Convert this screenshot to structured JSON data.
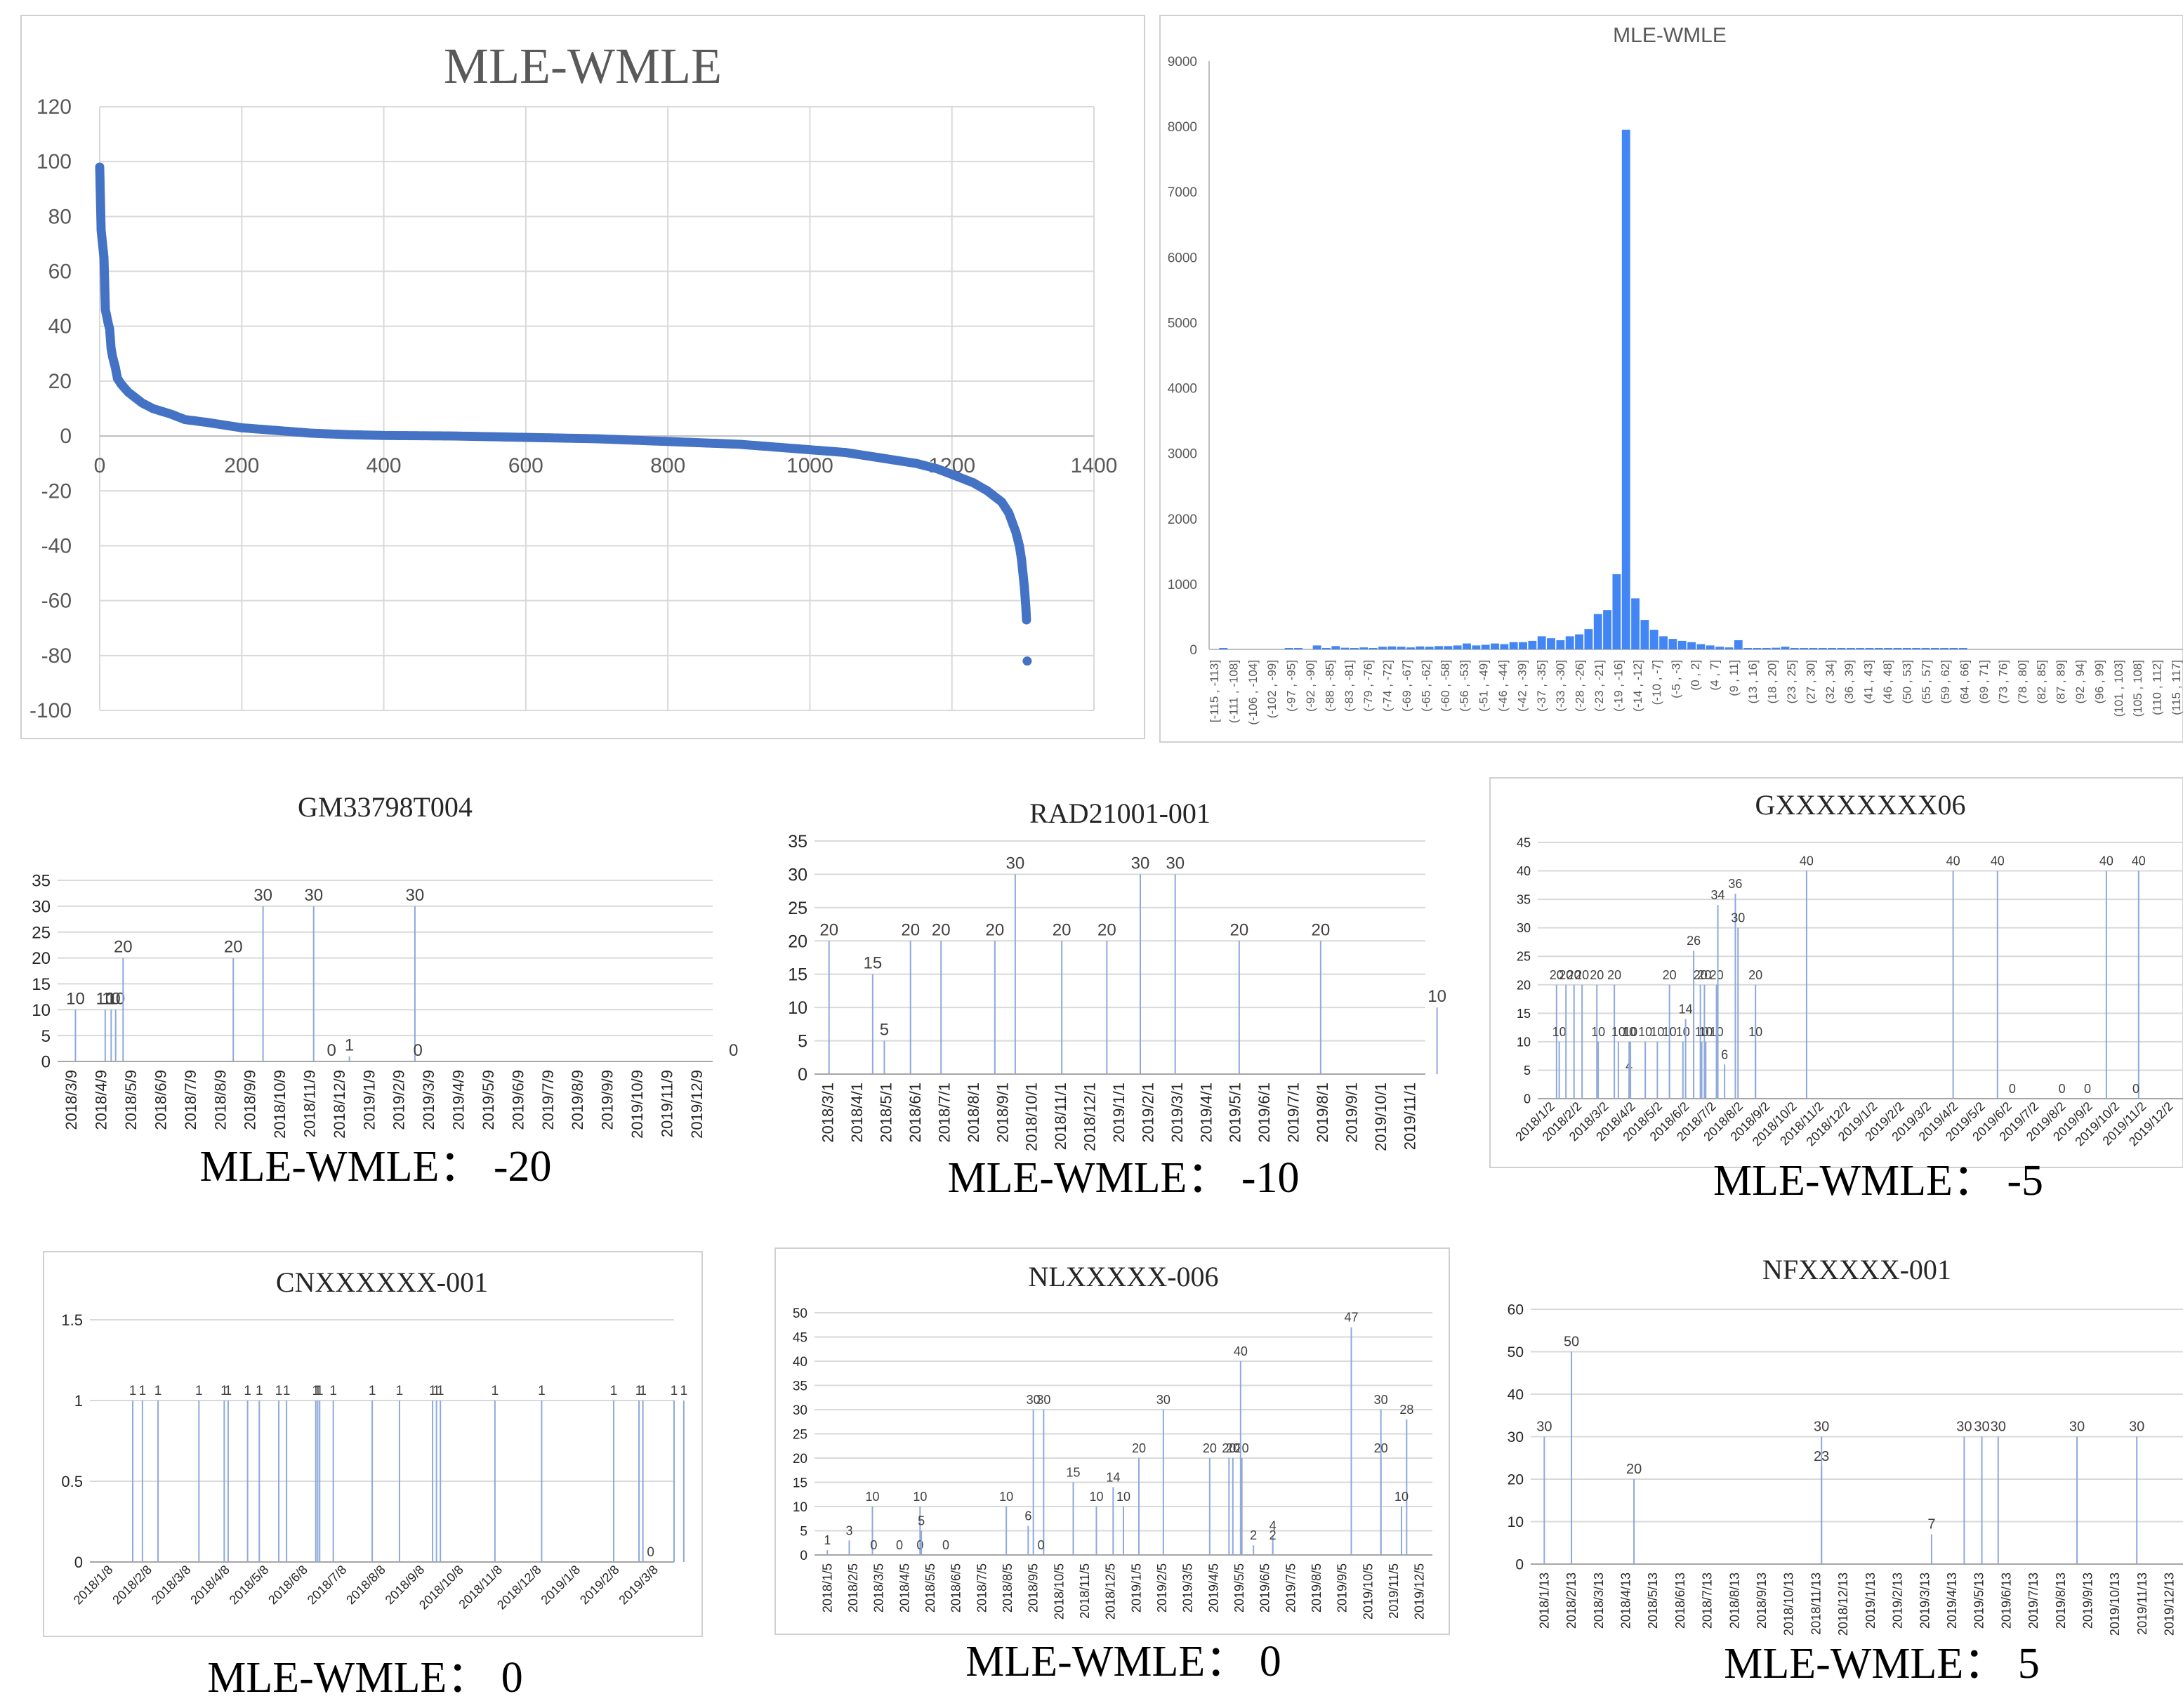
{
  "chart_data": [
    {
      "id": "scatter",
      "type": "scatter",
      "title": "MLE-WMLE",
      "xlim": [
        0,
        1400
      ],
      "ylim": [
        -100,
        120
      ],
      "xticks": [
        0,
        200,
        400,
        600,
        800,
        1000,
        1200,
        1400
      ],
      "yticks": [
        -100,
        -80,
        -60,
        -40,
        -20,
        0,
        20,
        40,
        60,
        80,
        100,
        120
      ],
      "grid": true,
      "color": "#4472C4",
      "curve": [
        [
          0,
          98
        ],
        [
          2,
          75
        ],
        [
          4,
          70
        ],
        [
          6,
          65
        ],
        [
          8,
          46
        ],
        [
          12,
          41
        ],
        [
          14,
          39
        ],
        [
          16,
          32
        ],
        [
          18,
          29
        ],
        [
          22,
          25
        ],
        [
          25,
          21
        ],
        [
          30,
          19
        ],
        [
          40,
          16
        ],
        [
          50,
          14
        ],
        [
          60,
          12
        ],
        [
          75,
          10
        ],
        [
          100,
          8
        ],
        [
          120,
          6
        ],
        [
          150,
          5
        ],
        [
          200,
          3
        ],
        [
          250,
          2
        ],
        [
          300,
          1
        ],
        [
          350,
          0.5
        ],
        [
          400,
          0.2
        ],
        [
          500,
          0
        ],
        [
          600,
          -0.5
        ],
        [
          700,
          -1
        ],
        [
          800,
          -2
        ],
        [
          900,
          -3
        ],
        [
          1000,
          -5
        ],
        [
          1050,
          -6
        ],
        [
          1100,
          -8
        ],
        [
          1150,
          -10
        ],
        [
          1180,
          -12
        ],
        [
          1200,
          -14
        ],
        [
          1230,
          -17
        ],
        [
          1250,
          -20
        ],
        [
          1270,
          -24
        ],
        [
          1280,
          -28
        ],
        [
          1290,
          -35
        ],
        [
          1295,
          -40
        ],
        [
          1298,
          -45
        ],
        [
          1300,
          -50
        ],
        [
          1302,
          -55
        ],
        [
          1304,
          -62
        ],
        [
          1305,
          -67
        ]
      ],
      "outlier": [
        1306,
        -82
      ]
    },
    {
      "id": "hist",
      "type": "bar",
      "title": "MLE-WMLE",
      "ylim": [
        0,
        9000
      ],
      "yticks": [
        0,
        1000,
        2000,
        3000,
        4000,
        5000,
        6000,
        7000,
        8000,
        9000
      ],
      "tick_labels": [
        "[-115 , -113]",
        "(-111 , -108]",
        "(-106 , -104]",
        "(-102 , -99]",
        "(-97 , -95]",
        "(-92 , -90]",
        "(-88 , -85]",
        "(-83 , -81]",
        "(-79 , -76]",
        "(-74 , -72]",
        "(-69 , -67]",
        "(-65 , -62]",
        "(-60 , -58]",
        "(-56 , -53]",
        "(-51 , -49]",
        "(-46 , -44]",
        "(-42 , -39]",
        "(-37 , -35]",
        "(-33 , -30]",
        "(-28 , -26]",
        "(-23 , -21]",
        "(-19 , -16]",
        "(-14 , -12]",
        "(-10 , -7]",
        "(-5 , -3]",
        "(0 , 2]",
        "(4 , 7]",
        "(9 , 11]",
        "(13 , 16]",
        "(18 , 20]",
        "(23 , 25]",
        "(27 , 30]",
        "(32 , 34]",
        "(36 , 39]",
        "(41 , 43]",
        "(46 , 48]",
        "(50 , 53]",
        "(55 , 57]",
        "(59 , 62]",
        "(64 , 66]",
        "(69 , 71]",
        "(73 , 76]",
        "(78 , 80]",
        "(82 , 85]",
        "(87 , 89]",
        "(92 , 94]",
        "(96 , 99]",
        "(101 , 103]",
        "(105 , 108]",
        "(110 , 112]",
        "(115 , 117]"
      ],
      "values": [
        0,
        2,
        0,
        0,
        0,
        0,
        0,
        0,
        5,
        2,
        0,
        60,
        5,
        50,
        25,
        5,
        30,
        5,
        40,
        45,
        40,
        30,
        45,
        40,
        50,
        50,
        60,
        90,
        60,
        70,
        90,
        80,
        110,
        110,
        130,
        200,
        170,
        140,
        200,
        230,
        310,
        540,
        600,
        1150,
        7950,
        780,
        450,
        300,
        200,
        160,
        130,
        110,
        80,
        60,
        40,
        30,
        140,
        20,
        15,
        20,
        25,
        40,
        10,
        8,
        5,
        5,
        5,
        3,
        3,
        2,
        2,
        2,
        1,
        1,
        1,
        1,
        1,
        1,
        1,
        1,
        1,
        0,
        0,
        0,
        0,
        0,
        0,
        0,
        0,
        0,
        0,
        0,
        0,
        0,
        0,
        0,
        0,
        0,
        0,
        0,
        0,
        0,
        0,
        0
      ],
      "color": "#4285F4"
    },
    {
      "id": "gm",
      "type": "bar",
      "title": "GM33798T004",
      "caption": "MLE-WMLE： -20",
      "ylim": [
        0,
        35
      ],
      "yticks": [
        0,
        5,
        10,
        15,
        20,
        25,
        30,
        35
      ],
      "categories": [
        "2018/3/9",
        "2018/4/9",
        "2018/5/9",
        "2018/6/9",
        "2018/7/9",
        "2018/8/9",
        "2018/9/9",
        "2018/10/9",
        "2018/11/9",
        "2018/12/9",
        "2019/1/9",
        "2019/2/9",
        "2019/3/9",
        "2019/4/9",
        "2019/5/9",
        "2019/6/9",
        "2019/7/9",
        "2019/8/9",
        "2019/9/9",
        "2019/10/9",
        "2019/11/9",
        "2019/12/9"
      ],
      "points": [
        [
          0.1,
          10,
          "10"
        ],
        [
          1.1,
          10,
          "10"
        ],
        [
          1.3,
          10,
          "10"
        ],
        [
          1.45,
          10,
          "10"
        ],
        [
          1.7,
          20,
          "20"
        ],
        [
          5.4,
          20,
          "20"
        ],
        [
          6.4,
          30,
          "30"
        ],
        [
          8.1,
          30,
          "30"
        ],
        [
          8.7,
          0,
          "0"
        ],
        [
          9.3,
          1,
          "1"
        ],
        [
          11.5,
          30,
          "30"
        ],
        [
          11.6,
          0,
          "0"
        ],
        [
          22.2,
          0,
          "0"
        ]
      ]
    },
    {
      "id": "rad",
      "type": "bar",
      "title": "RAD21001-001",
      "caption": "MLE-WMLE： -10",
      "ylim": [
        0,
        35
      ],
      "yticks": [
        0,
        5,
        10,
        15,
        20,
        25,
        30,
        35
      ],
      "categories": [
        "2018/3/1",
        "2018/4/1",
        "2018/5/1",
        "2018/6/1",
        "2018/7/1",
        "2018/8/1",
        "2018/9/1",
        "2018/10/1",
        "2018/11/1",
        "2018/12/1",
        "2019/1/1",
        "2019/2/1",
        "2019/3/1",
        "2019/4/1",
        "2019/5/1",
        "2019/6/1",
        "2019/7/1",
        "2019/8/1",
        "2019/9/1",
        "2019/10/1",
        "2019/11/1"
      ],
      "points": [
        [
          0,
          20,
          "20"
        ],
        [
          1.5,
          15,
          "15"
        ],
        [
          1.9,
          5,
          "5"
        ],
        [
          2.8,
          20,
          "20"
        ],
        [
          3.85,
          20,
          "20"
        ],
        [
          5.7,
          20,
          "20"
        ],
        [
          6.4,
          30,
          "30"
        ],
        [
          8.0,
          20,
          "20"
        ],
        [
          9.55,
          20,
          "20"
        ],
        [
          10.7,
          30,
          "30"
        ],
        [
          11.9,
          30,
          "30"
        ],
        [
          14.1,
          20,
          "20"
        ],
        [
          16.9,
          20,
          "20"
        ],
        [
          20.9,
          10,
          "10"
        ]
      ]
    },
    {
      "id": "gx",
      "type": "bar",
      "title": "GXXXXXXXX06",
      "caption": "MLE-WMLE： -5",
      "ylim": [
        0,
        45
      ],
      "yticks": [
        0,
        5,
        10,
        15,
        20,
        25,
        30,
        35,
        40,
        45
      ],
      "categories": [
        "2018/1/2",
        "2018/2/2",
        "2018/3/2",
        "2018/4/2",
        "2018/5/2",
        "2018/6/2",
        "2018/7/2",
        "2018/8/2",
        "2018/9/2",
        "2018/10/2",
        "2018/11/2",
        "2018/12/2",
        "2019/1/2",
        "2019/2/2",
        "2019/3/2",
        "2019/4/2",
        "2019/5/2",
        "2019/6/2",
        "2019/7/2",
        "2019/8/2",
        "2019/9/2",
        "2019/10/2",
        "2019/11/2",
        "2019/12/2"
      ],
      "points": [
        [
          0.2,
          20,
          "20"
        ],
        [
          0.3,
          10,
          "10"
        ],
        [
          0.55,
          20,
          "20"
        ],
        [
          0.85,
          20,
          "20"
        ],
        [
          1.15,
          20,
          "20"
        ],
        [
          1.7,
          20,
          "20"
        ],
        [
          1.75,
          10,
          "10"
        ],
        [
          2.35,
          20,
          "20"
        ],
        [
          2.5,
          10,
          "10"
        ],
        [
          2.9,
          4,
          "4"
        ],
        [
          2.9,
          10,
          "10"
        ],
        [
          2.95,
          10,
          "10"
        ],
        [
          3.5,
          10,
          "10"
        ],
        [
          3.95,
          10,
          "10"
        ],
        [
          4.4,
          20,
          "20"
        ],
        [
          4.4,
          10,
          "10"
        ],
        [
          4.9,
          10,
          "10"
        ],
        [
          5.0,
          14,
          "14"
        ],
        [
          5.3,
          26,
          "26"
        ],
        [
          5.55,
          20,
          "20"
        ],
        [
          5.6,
          10,
          "10"
        ],
        [
          5.7,
          20,
          "20"
        ],
        [
          5.75,
          10,
          "10"
        ],
        [
          6.15,
          20,
          "20"
        ],
        [
          6.15,
          10,
          "10"
        ],
        [
          6.2,
          34,
          "34"
        ],
        [
          6.45,
          6,
          "6"
        ],
        [
          6.85,
          36,
          "36"
        ],
        [
          6.95,
          30,
          "30"
        ],
        [
          7.6,
          20,
          "20"
        ],
        [
          7.6,
          10,
          "10"
        ],
        [
          9.5,
          40,
          "40"
        ],
        [
          14.95,
          40,
          "40"
        ],
        [
          16.6,
          40,
          "40"
        ],
        [
          17.15,
          0,
          "0"
        ],
        [
          19.0,
          0,
          "0"
        ],
        [
          20.65,
          40,
          "40"
        ],
        [
          19.95,
          0,
          "0"
        ],
        [
          21.85,
          40,
          "40"
        ],
        [
          21.75,
          0,
          "0"
        ]
      ]
    },
    {
      "id": "cn",
      "type": "bar",
      "title": "CNXXXXXX-001",
      "caption": "MLE-WMLE： 0",
      "ylim": [
        0,
        1.5
      ],
      "yticks": [
        0,
        0.5,
        1,
        1.5
      ],
      "categories": [
        "2018/1/8",
        "2018/2/8",
        "2018/3/8",
        "2018/4/8",
        "2018/5/8",
        "2018/6/8",
        "2018/7/8",
        "2018/8/8",
        "2018/9/8",
        "2018/10/8",
        "2018/11/8",
        "2018/12/8",
        "2019/1/8",
        "2019/2/8",
        "2019/3/8"
      ],
      "points": [
        [
          0.6,
          1,
          "1"
        ],
        [
          0.85,
          1,
          "1"
        ],
        [
          1.25,
          1,
          "1"
        ],
        [
          2.3,
          1,
          "1"
        ],
        [
          2.95,
          1,
          "1"
        ],
        [
          3.05,
          1,
          "1"
        ],
        [
          3.55,
          1,
          "1"
        ],
        [
          3.85,
          1,
          "1"
        ],
        [
          4.35,
          1,
          "1"
        ],
        [
          4.55,
          1,
          "1"
        ],
        [
          5.3,
          1,
          "1"
        ],
        [
          5.35,
          1,
          "1"
        ],
        [
          5.4,
          1,
          "1"
        ],
        [
          5.75,
          1,
          "1"
        ],
        [
          6.75,
          1,
          "1"
        ],
        [
          7.45,
          1,
          "1"
        ],
        [
          8.3,
          1,
          "1"
        ],
        [
          8.4,
          1,
          "1"
        ],
        [
          8.5,
          1,
          "1"
        ],
        [
          9.9,
          1,
          "1"
        ],
        [
          11.1,
          1,
          "1"
        ],
        [
          12.95,
          1,
          "1"
        ],
        [
          13.6,
          1,
          "1"
        ],
        [
          13.7,
          1,
          "1"
        ],
        [
          13.9,
          0,
          "0"
        ],
        [
          14.5,
          1,
          "1"
        ],
        [
          14.75,
          1,
          "1"
        ]
      ]
    },
    {
      "id": "nl",
      "type": "bar",
      "title": "NLXXXXX-006",
      "caption": "MLE-WMLE： 0",
      "ylim": [
        0,
        50
      ],
      "yticks": [
        0,
        5,
        10,
        15,
        20,
        25,
        30,
        35,
        40,
        45,
        50
      ],
      "categories": [
        "2018/1/5",
        "2018/2/5",
        "2018/3/5",
        "2018/4/5",
        "2018/5/5",
        "2018/6/5",
        "2018/7/5",
        "2018/8/5",
        "2018/9/5",
        "2018/10/5",
        "2018/11/5",
        "2018/12/5",
        "2019/1/5",
        "2019/2/5",
        "2019/3/5",
        "2019/4/5",
        "2019/5/5",
        "2019/6/5",
        "2019/7/5",
        "2019/8/5",
        "2019/9/5",
        "2019/10/5",
        "2019/11/5",
        "2019/12/5"
      ],
      "points": [
        [
          0,
          1,
          "1"
        ],
        [
          0.85,
          3,
          "3"
        ],
        [
          1.75,
          10,
          "10"
        ],
        [
          1.8,
          0,
          "0"
        ],
        [
          2.8,
          0,
          "0"
        ],
        [
          3.6,
          10,
          "10"
        ],
        [
          3.6,
          0,
          "0"
        ],
        [
          3.65,
          5,
          "5"
        ],
        [
          4.6,
          0,
          "0"
        ],
        [
          6.95,
          10,
          "10"
        ],
        [
          7.8,
          6,
          "6"
        ],
        [
          8.0,
          30,
          "30"
        ],
        [
          8.4,
          30,
          "30"
        ],
        [
          8.3,
          0,
          "0"
        ],
        [
          9.55,
          15,
          "15"
        ],
        [
          10.45,
          10,
          "10"
        ],
        [
          11.1,
          14,
          "14"
        ],
        [
          11.5,
          10,
          "10"
        ],
        [
          12.1,
          20,
          "20"
        ],
        [
          13.05,
          30,
          "30"
        ],
        [
          14.85,
          20,
          "20"
        ],
        [
          15.6,
          20,
          "20"
        ],
        [
          15.75,
          20,
          "20"
        ],
        [
          16.1,
          20,
          "20"
        ],
        [
          16.05,
          40,
          "40"
        ],
        [
          16.55,
          2,
          "2"
        ],
        [
          17.3,
          4,
          "4"
        ],
        [
          17.3,
          2,
          "2"
        ],
        [
          20.35,
          47,
          "47"
        ],
        [
          21.5,
          30,
          "30"
        ],
        [
          21.5,
          20,
          "20"
        ],
        [
          22.5,
          28,
          "28"
        ],
        [
          22.3,
          10,
          "10"
        ]
      ]
    },
    {
      "id": "nf",
      "type": "bar",
      "title": "NFXXXXX-001",
      "caption": "MLE-WMLE： 5",
      "ylim": [
        0,
        60
      ],
      "yticks": [
        0,
        10,
        20,
        30,
        40,
        50,
        60
      ],
      "categories": [
        "2018/1/13",
        "2018/2/13",
        "2018/3/13",
        "2018/4/13",
        "2018/5/13",
        "2018/6/13",
        "2018/7/13",
        "2018/8/13",
        "2018/9/13",
        "2018/10/13",
        "2018/11/13",
        "2018/12/13",
        "2019/1/13",
        "2019/2/13",
        "2019/3/13",
        "2019/4/13",
        "2019/5/13",
        "2019/6/13",
        "2019/7/13",
        "2019/8/13",
        "2019/9/13",
        "2019/10/13",
        "2019/11/13",
        "2019/12/13"
      ],
      "points": [
        [
          0,
          30,
          "30"
        ],
        [
          1.0,
          50,
          "50"
        ],
        [
          3.3,
          20,
          "20"
        ],
        [
          10.2,
          30,
          "30"
        ],
        [
          10.2,
          23,
          "23"
        ],
        [
          14.25,
          7,
          "7"
        ],
        [
          15.45,
          30,
          "30"
        ],
        [
          16.1,
          30,
          "30"
        ],
        [
          16.7,
          30,
          "30"
        ],
        [
          19.6,
          30,
          "30"
        ],
        [
          21.8,
          30,
          "30"
        ]
      ]
    }
  ]
}
